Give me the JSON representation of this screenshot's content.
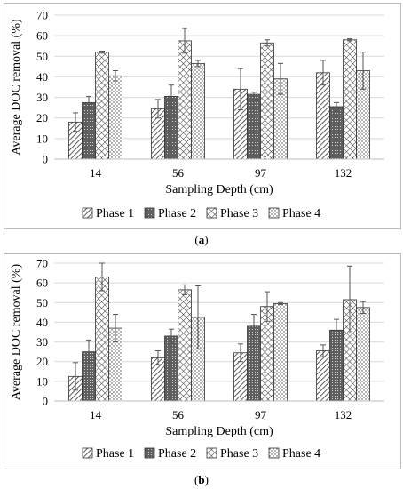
{
  "chart_data": [
    {
      "panel": "a",
      "type": "bar",
      "categories": [
        "14",
        "56",
        "97",
        "132"
      ],
      "series": [
        {
          "name": "Phase 1",
          "values": [
            18,
            24.5,
            34,
            42
          ],
          "errors": [
            4.5,
            4.5,
            10,
            6
          ]
        },
        {
          "name": "Phase 2",
          "values": [
            27.5,
            30.5,
            31.5,
            25.5
          ],
          "errors": [
            3,
            5.5,
            1,
            2
          ]
        },
        {
          "name": "Phase 3",
          "values": [
            52,
            57.5,
            56.5,
            58
          ],
          "errors": [
            0.5,
            6,
            1.5,
            0.5
          ]
        },
        {
          "name": "Phase 4",
          "values": [
            40.5,
            46.5,
            39,
            43
          ],
          "errors": [
            2.5,
            1.5,
            7.5,
            9
          ]
        }
      ],
      "xlabel": "Sampling Depth (cm)",
      "ylabel": "Average DOC removal (%)",
      "ylim": [
        0,
        70
      ],
      "yticks": [
        "0",
        "10",
        "20",
        "30",
        "40",
        "50",
        "60",
        "70"
      ],
      "grid": true,
      "legend": "bottom"
    },
    {
      "panel": "b",
      "type": "bar",
      "categories": [
        "14",
        "56",
        "97",
        "132"
      ],
      "series": [
        {
          "name": "Phase 1",
          "values": [
            12.5,
            22,
            24.5,
            25.5
          ],
          "errors": [
            7,
            3.5,
            4.5,
            3
          ]
        },
        {
          "name": "Phase 2",
          "values": [
            25,
            33,
            38,
            36
          ],
          "errors": [
            6,
            3.5,
            6,
            5.5
          ]
        },
        {
          "name": "Phase 3",
          "values": [
            63,
            56.5,
            48,
            51.5
          ],
          "errors": [
            7,
            2.5,
            7.5,
            17
          ]
        },
        {
          "name": "Phase 4",
          "values": [
            37,
            42.5,
            49.5,
            47.5
          ],
          "errors": [
            7,
            16,
            0.5,
            3
          ]
        }
      ],
      "xlabel": "Sampling Depth (cm)",
      "ylabel": "Average DOC removal (%)",
      "ylim": [
        0,
        70
      ],
      "yticks": [
        "0",
        "10",
        "20",
        "30",
        "40",
        "50",
        "60",
        "70"
      ],
      "grid": true,
      "legend": "bottom"
    }
  ],
  "captions": {
    "a": {
      "open": "(",
      "letter": "a",
      "close": ")"
    },
    "b": {
      "open": "(",
      "letter": "b",
      "close": ")"
    }
  }
}
